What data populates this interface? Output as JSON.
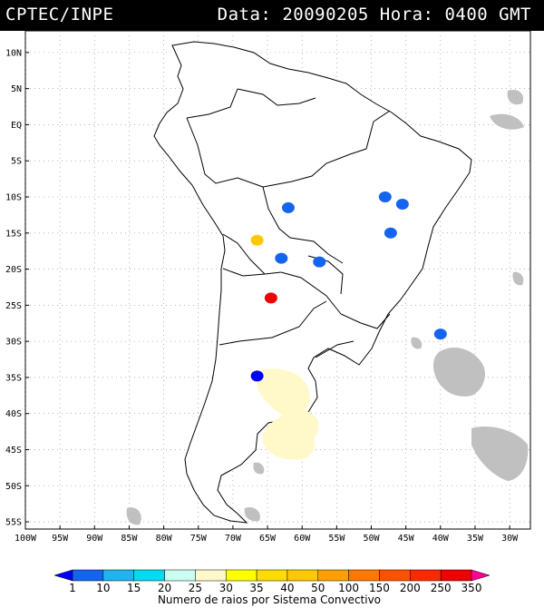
{
  "header": {
    "agency": "CPTEC/INPE",
    "date_label": "Data:",
    "date_value": "20090205",
    "hour_label": "Hora:",
    "hour_value": "0400",
    "timezone": "GMT"
  },
  "map": {
    "lon_range": [
      -100,
      -27
    ],
    "lat_range": [
      -56,
      13
    ],
    "lat_ticks": [
      {
        "value": 10,
        "label": "10N"
      },
      {
        "value": 5,
        "label": "5N"
      },
      {
        "value": 0,
        "label": "EQ"
      },
      {
        "value": -5,
        "label": "5S"
      },
      {
        "value": -10,
        "label": "10S"
      },
      {
        "value": -15,
        "label": "15S"
      },
      {
        "value": -20,
        "label": "20S"
      },
      {
        "value": -25,
        "label": "25S"
      },
      {
        "value": -30,
        "label": "30S"
      },
      {
        "value": -35,
        "label": "35S"
      },
      {
        "value": -40,
        "label": "40S"
      },
      {
        "value": -45,
        "label": "45S"
      },
      {
        "value": -50,
        "label": "50S"
      },
      {
        "value": -55,
        "label": "55S"
      }
    ],
    "lon_ticks": [
      {
        "value": -100,
        "label": "100W"
      },
      {
        "value": -95,
        "label": "95W"
      },
      {
        "value": -90,
        "label": "90W"
      },
      {
        "value": -85,
        "label": "85W"
      },
      {
        "value": -80,
        "label": "80W"
      },
      {
        "value": -75,
        "label": "75W"
      },
      {
        "value": -70,
        "label": "70W"
      },
      {
        "value": -65,
        "label": "65W"
      },
      {
        "value": -60,
        "label": "60W"
      },
      {
        "value": -55,
        "label": "55W"
      },
      {
        "value": -50,
        "label": "50W"
      },
      {
        "value": -45,
        "label": "45W"
      },
      {
        "value": -40,
        "label": "40W"
      },
      {
        "value": -35,
        "label": "35W"
      },
      {
        "value": -30,
        "label": "30W"
      }
    ],
    "grid": "dotted",
    "cloud_color": "#c0c0c0",
    "systems": [
      {
        "lon": -62.0,
        "lat": -11.5,
        "color": "#1464f0"
      },
      {
        "lon": -48.0,
        "lat": -10.0,
        "color": "#1464f0"
      },
      {
        "lon": -45.5,
        "lat": -11.0,
        "color": "#1464f0"
      },
      {
        "lon": -47.2,
        "lat": -15.0,
        "color": "#1464f0"
      },
      {
        "lon": -66.5,
        "lat": -16.0,
        "color": "#ffc800"
      },
      {
        "lon": -63.0,
        "lat": -18.5,
        "color": "#1464f0"
      },
      {
        "lon": -57.5,
        "lat": -19.0,
        "color": "#1464f0"
      },
      {
        "lon": -64.5,
        "lat": -24.0,
        "color": "#f00000"
      },
      {
        "lon": -40.0,
        "lat": -29.0,
        "color": "#1464f0"
      },
      {
        "lon": -66.5,
        "lat": -34.8,
        "color": "#0000ff"
      }
    ],
    "stratiform_color": "#fff8c8"
  },
  "colorbar": {
    "labels": [
      "1",
      "10",
      "15",
      "20",
      "25",
      "30",
      "35",
      "40",
      "50",
      "100",
      "150",
      "200",
      "250",
      "350"
    ],
    "colors": [
      "#0000ff",
      "#1464f0",
      "#1eb4f0",
      "#00dcf0",
      "#c8fff0",
      "#fff8c8",
      "#ffff00",
      "#ffdc00",
      "#ffc800",
      "#ffa000",
      "#ff7800",
      "#ff5000",
      "#ff2800",
      "#f00000",
      "#ff0096"
    ],
    "title": "Numero de raios por Sistema Convectivo"
  }
}
